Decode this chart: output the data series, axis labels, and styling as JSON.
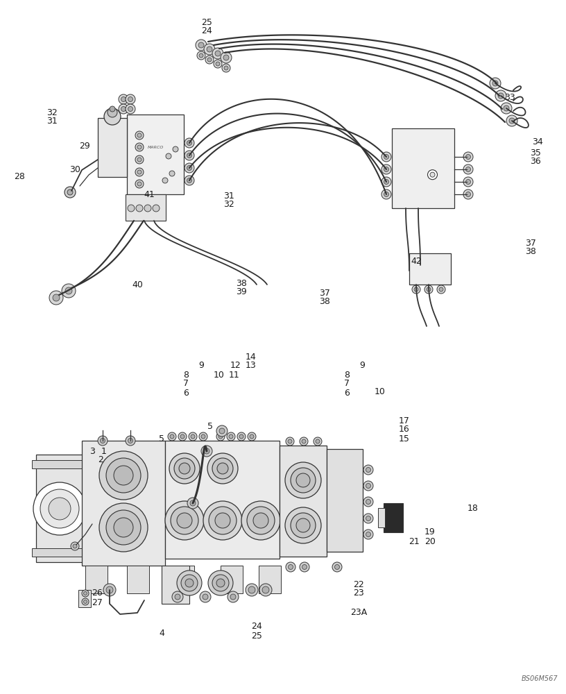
{
  "background": "#ffffff",
  "watermark": "BS06M567",
  "label_fs": 9,
  "upper_labels": [
    [
      298,
      968,
      "25"
    ],
    [
      298,
      955,
      "24"
    ],
    [
      735,
      860,
      "33"
    ],
    [
      775,
      795,
      "34"
    ],
    [
      772,
      780,
      "35"
    ],
    [
      772,
      767,
      "36"
    ],
    [
      765,
      650,
      "37"
    ],
    [
      765,
      637,
      "38"
    ],
    [
      75,
      838,
      "32"
    ],
    [
      75,
      825,
      "31"
    ],
    [
      28,
      745,
      "28"
    ],
    [
      122,
      790,
      "29"
    ],
    [
      108,
      755,
      "30"
    ],
    [
      215,
      720,
      "41"
    ],
    [
      330,
      718,
      "31"
    ],
    [
      330,
      705,
      "32"
    ],
    [
      198,
      590,
      "40"
    ],
    [
      348,
      592,
      "38"
    ],
    [
      348,
      579,
      "39"
    ],
    [
      468,
      578,
      "37"
    ],
    [
      468,
      565,
      "38"
    ],
    [
      600,
      623,
      "42"
    ]
  ],
  "lower_labels": [
    [
      150,
      350,
      "1"
    ],
    [
      145,
      337,
      "2"
    ],
    [
      133,
      350,
      "3"
    ],
    [
      233,
      88,
      "4"
    ],
    [
      303,
      385,
      "5"
    ],
    [
      233,
      368,
      "5"
    ],
    [
      268,
      460,
      "8"
    ],
    [
      500,
      460,
      "8"
    ],
    [
      268,
      447,
      "7"
    ],
    [
      500,
      447,
      "7"
    ],
    [
      268,
      434,
      "6"
    ],
    [
      500,
      434,
      "6"
    ],
    [
      290,
      473,
      "9"
    ],
    [
      522,
      473,
      "9"
    ],
    [
      316,
      460,
      "10"
    ],
    [
      548,
      435,
      "10"
    ],
    [
      338,
      460,
      "11"
    ],
    [
      340,
      473,
      "12"
    ],
    [
      362,
      473,
      "13"
    ],
    [
      362,
      486,
      "14"
    ],
    [
      583,
      368,
      "15"
    ],
    [
      583,
      381,
      "16"
    ],
    [
      583,
      394,
      "17"
    ],
    [
      682,
      268,
      "18"
    ],
    [
      620,
      233,
      "19"
    ],
    [
      620,
      220,
      "20"
    ],
    [
      597,
      220,
      "21"
    ],
    [
      517,
      158,
      "22"
    ],
    [
      517,
      145,
      "23"
    ],
    [
      517,
      118,
      "23A"
    ],
    [
      370,
      97,
      "24"
    ],
    [
      370,
      84,
      "25"
    ],
    [
      140,
      145,
      "26"
    ],
    [
      140,
      132,
      "27"
    ]
  ]
}
